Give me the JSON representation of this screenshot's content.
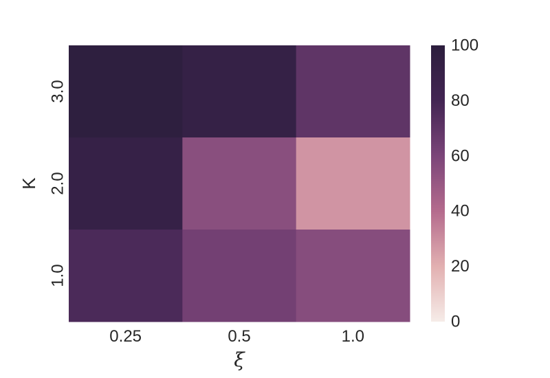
{
  "chart_data": {
    "type": "heatmap",
    "title": "",
    "xlabel": "ξ",
    "ylabel": "K",
    "x_categories": [
      "0.25",
      "0.5",
      "1.0"
    ],
    "y_categories": [
      "3.0",
      "2.0",
      "1.0"
    ],
    "values": [
      [
        98,
        92,
        70
      ],
      [
        91,
        55,
        28
      ],
      [
        77,
        63,
        56
      ]
    ],
    "colorbar": {
      "min": 0,
      "max": 100,
      "ticks": [
        "0",
        "20",
        "40",
        "60",
        "80",
        "100"
      ],
      "colors": [
        "#f6ece8",
        "#e2b0b1",
        "#b46b8d",
        "#7b4579",
        "#432553",
        "#2c1e3d"
      ]
    },
    "grid": false,
    "legend": "colorbar-right"
  }
}
